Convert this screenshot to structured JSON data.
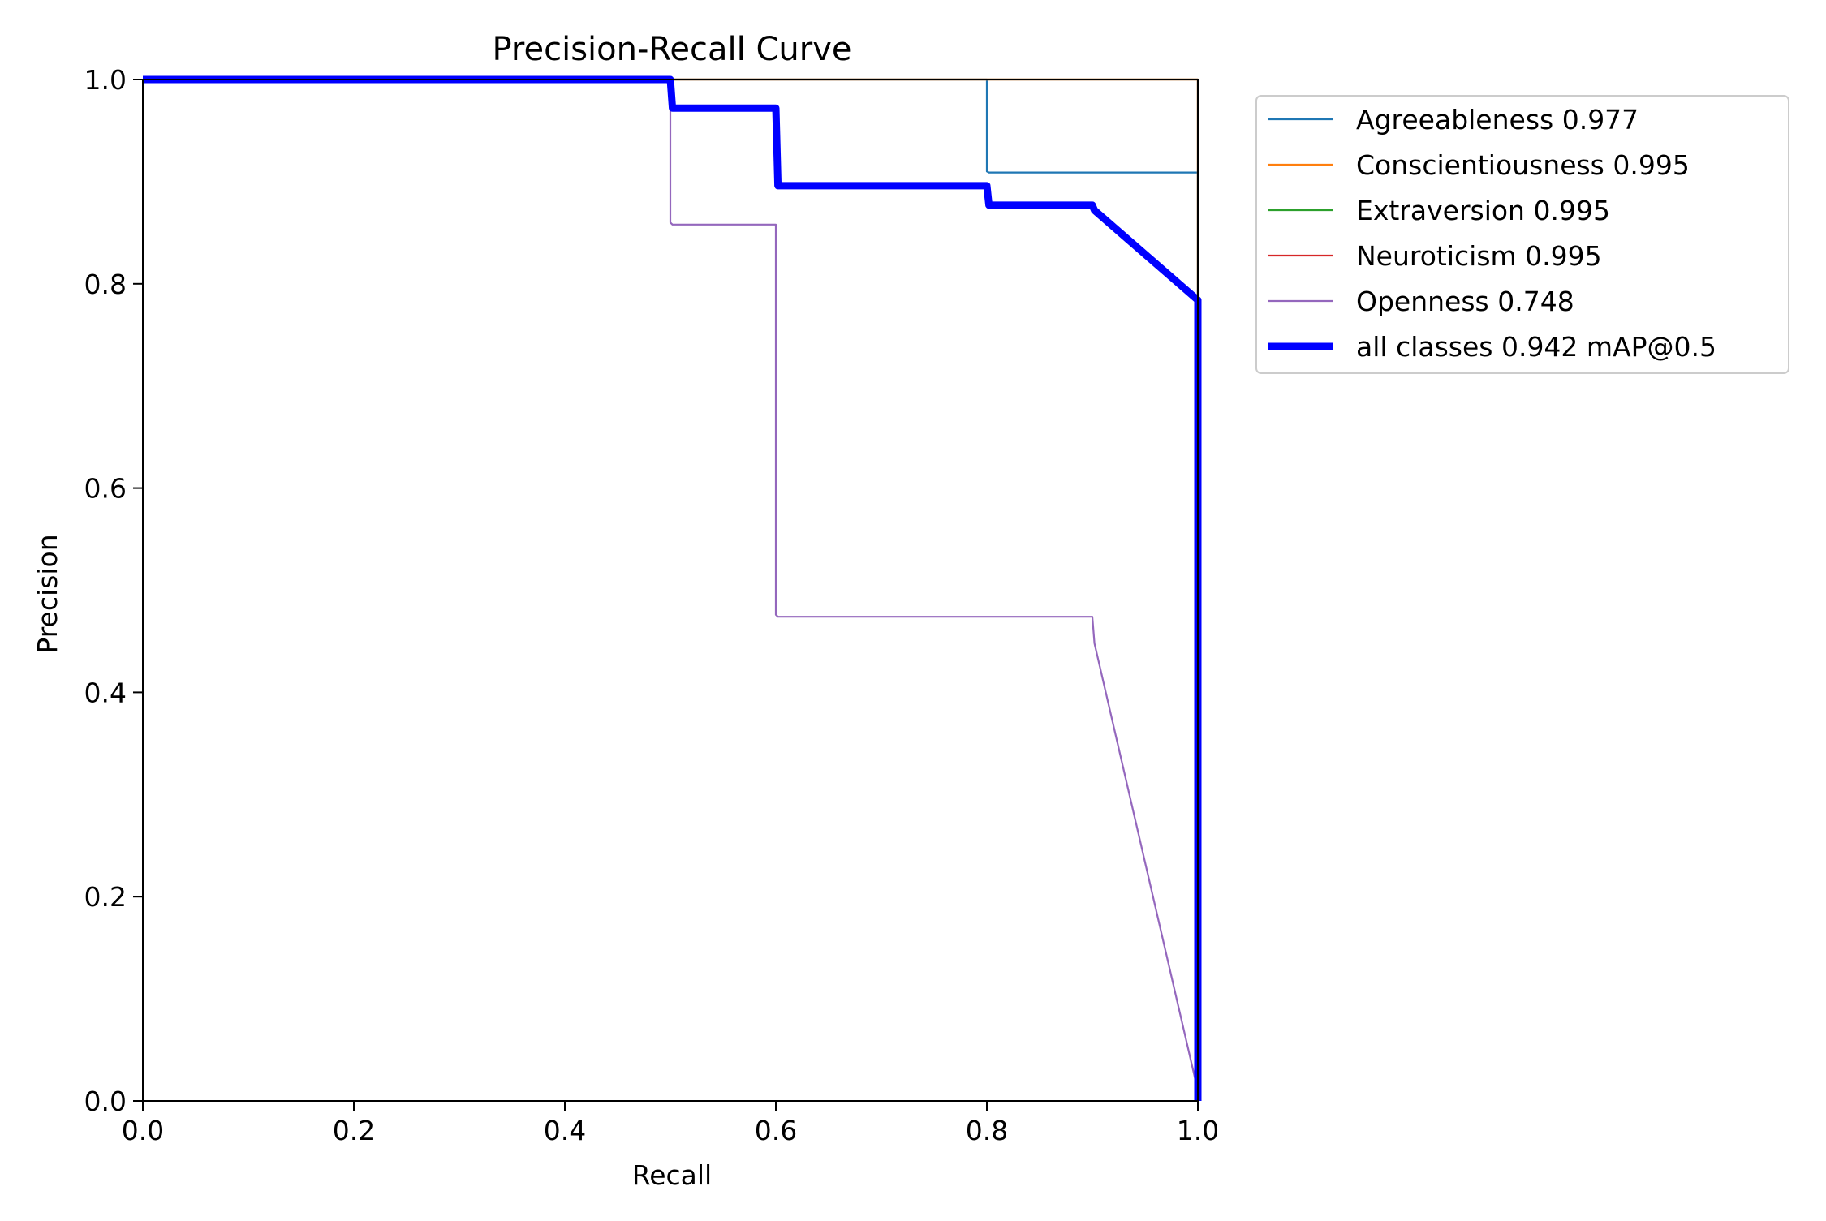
{
  "chart_data": {
    "type": "line",
    "title": "Precision-Recall Curve",
    "xlabel": "Recall",
    "ylabel": "Precision",
    "xlim": [
      0,
      1
    ],
    "ylim": [
      0,
      1
    ],
    "xticks": [
      "0.0",
      "0.2",
      "0.4",
      "0.6",
      "0.8",
      "1.0"
    ],
    "yticks": [
      "0.0",
      "0.2",
      "0.4",
      "0.6",
      "0.8",
      "1.0"
    ],
    "grid": false,
    "legend_position": "outside-top-right",
    "series": [
      {
        "name": "Agreeableness 0.977",
        "color": "#1f77b4",
        "width": "thin",
        "x": [
          0.0,
          0.8,
          0.8,
          0.802,
          1.0,
          1.0
        ],
        "y": [
          1.0,
          1.0,
          0.91,
          0.909,
          0.909,
          0.0
        ]
      },
      {
        "name": "Conscientiousness 0.995",
        "color": "#ff7f0e",
        "width": "thin",
        "x": [
          0.0,
          1.0,
          1.0
        ],
        "y": [
          1.0,
          1.0,
          0.0
        ]
      },
      {
        "name": "Extraversion 0.995",
        "color": "#2ca02c",
        "width": "thin",
        "x": [
          0.0,
          1.0,
          1.0
        ],
        "y": [
          1.0,
          1.0,
          0.0
        ]
      },
      {
        "name": "Neuroticism 0.995",
        "color": "#d62728",
        "width": "thin",
        "x": [
          0.0,
          1.0,
          1.0
        ],
        "y": [
          1.0,
          1.0,
          0.0
        ]
      },
      {
        "name": "Openness 0.748",
        "color": "#9467bd",
        "width": "thin",
        "x": [
          0.0,
          0.5,
          0.5,
          0.502,
          0.6,
          0.6,
          0.602,
          0.9,
          0.902,
          1.0,
          1.0
        ],
        "y": [
          1.0,
          1.0,
          0.86,
          0.858,
          0.858,
          0.476,
          0.474,
          0.474,
          0.448,
          0.01,
          0.0
        ]
      },
      {
        "name": "all classes 0.942 mAP@0.5",
        "color": "#0000ff",
        "width": "thick",
        "x": [
          0.0,
          0.5,
          0.502,
          0.6,
          0.602,
          0.8,
          0.802,
          0.9,
          0.902,
          1.0,
          1.0
        ],
        "y": [
          1.0,
          1.0,
          0.972,
          0.972,
          0.896,
          0.896,
          0.877,
          0.877,
          0.872,
          0.784,
          0.0
        ]
      }
    ]
  }
}
